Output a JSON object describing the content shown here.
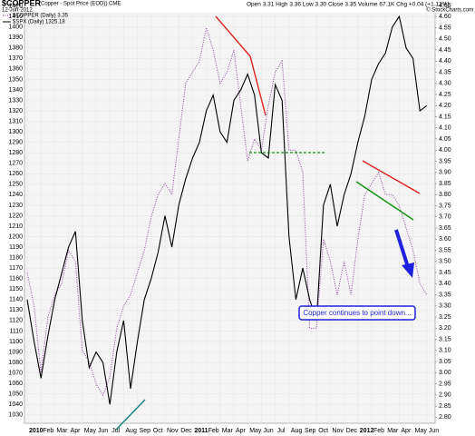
{
  "chart_data": {
    "type": "line",
    "title": "$COPPER",
    "subtitle": "(Copper - Spot Price (EOD)) CME",
    "date": "12-Jun-2012",
    "quote": "Open 3.31  High 3.36  Low 3.30  Close 3.35  Volume 67.1K  Chg +0.04 (+1.13%)",
    "source": "© StockCharts.com",
    "annotation": "Copper continues to point down...",
    "categories": [
      "2010",
      null,
      "Feb",
      null,
      "Mar",
      null,
      "Apr",
      null,
      "May",
      null,
      "Jun",
      null,
      "Jul",
      null,
      "Aug",
      null,
      "Sep",
      null,
      "Oct",
      null,
      "Nov",
      null,
      "Dec",
      null,
      "2011",
      null,
      "Feb",
      null,
      "Mar",
      null,
      "Apr",
      null,
      "May",
      null,
      "Jun",
      null,
      "Jul",
      null,
      "Aug",
      null,
      "Sep",
      null,
      "Oct",
      null,
      "Nov",
      null,
      "Dec",
      null,
      "2012",
      null,
      "Feb",
      null,
      "Mar",
      null,
      "Apr",
      null,
      "May",
      null,
      "Jun"
    ],
    "series": [
      {
        "name": "$COPPER (Daily) 3.35",
        "color": "#9040a0",
        "axis": "y2",
        "values": [
          3.45,
          3.3,
          3.0,
          3.25,
          3.35,
          3.4,
          3.55,
          3.5,
          3.1,
          3.05,
          2.95,
          2.9,
          2.98,
          3.2,
          3.3,
          3.35,
          3.45,
          3.55,
          3.7,
          3.8,
          3.85,
          3.8,
          4.05,
          4.3,
          4.35,
          4.4,
          4.55,
          4.45,
          4.3,
          4.35,
          4.45,
          4.2,
          3.95,
          4.05,
          4.0,
          4.2,
          4.35,
          4.4,
          4.0,
          4.0,
          3.9,
          3.2,
          3.2,
          3.6,
          3.5,
          3.35,
          3.5,
          3.35,
          3.6,
          3.8,
          3.85,
          3.9,
          3.8,
          3.8,
          3.75,
          3.65,
          3.55,
          3.4,
          3.35
        ]
      },
      {
        "name": "$SPX (Daily) 1325.18",
        "color": "#000000",
        "values": [
          1140,
          1100,
          1065,
          1105,
          1140,
          1165,
          1190,
          1205,
          1120,
          1075,
          1090,
          1080,
          1040,
          1090,
          1120,
          1055,
          1100,
          1140,
          1160,
          1185,
          1220,
          1190,
          1230,
          1255,
          1275,
          1290,
          1320,
          1335,
          1300,
          1290,
          1330,
          1340,
          1355,
          1335,
          1280,
          1275,
          1345,
          1330,
          1200,
          1140,
          1170,
          1140,
          1120,
          1230,
          1250,
          1210,
          1240,
          1260,
          1290,
          1315,
          1350,
          1365,
          1375,
          1400,
          1410,
          1380,
          1370,
          1320,
          1325
        ]
      }
    ],
    "ylim": [
      1022,
      1424
    ],
    "yticks": [
      1030,
      1040,
      1050,
      1060,
      1070,
      1080,
      1090,
      1100,
      1110,
      1120,
      1130,
      1140,
      1150,
      1160,
      1170,
      1180,
      1190,
      1200,
      1210,
      1220,
      1230,
      1240,
      1250,
      1260,
      1270,
      1280,
      1290,
      1300,
      1310,
      1320,
      1330,
      1340,
      1350,
      1360,
      1370,
      1380,
      1390,
      1400,
      1410,
      1420
    ],
    "y2lim": [
      2.773,
      4.666
    ],
    "y2ticks": [
      4.65,
      {
        "value": 4.6,
        "label": "4.60"
      },
      4.55,
      {
        "value": 4.5,
        "label": "4.50"
      },
      4.45,
      {
        "value": 4.4,
        "label": "4.40"
      },
      4.35,
      {
        "value": 4.3,
        "label": "4.30"
      },
      4.25,
      {
        "value": 4.2,
        "label": "4.20"
      },
      4.15,
      {
        "value": 4.1,
        "label": "4.10"
      },
      4.05,
      {
        "value": 4,
        "label": "4.00"
      },
      3.95,
      {
        "value": 3.9,
        "label": "3.90"
      },
      3.85,
      {
        "value": 3.8,
        "label": "3.80"
      },
      3.75,
      {
        "value": 3.7,
        "label": "3.70"
      },
      3.65,
      {
        "value": 3.6,
        "label": "3.60"
      },
      3.55,
      {
        "value": 3.5,
        "label": "3.50"
      },
      3.45,
      {
        "value": 3.4,
        "label": "3.40"
      },
      3.35,
      {
        "value": 3.3,
        "label": "3.30"
      },
      3.25,
      {
        "value": 3.2,
        "label": "3.20"
      },
      3.15,
      {
        "value": 3.1,
        "label": "3.10"
      },
      3.05,
      {
        "value": 3,
        "label": "3.00"
      },
      2.95,
      {
        "value": 2.9,
        "label": "2.90"
      },
      2.85,
      {
        "value": 2.8,
        "label": "2.80"
      }
    ],
    "grid": true
  }
}
